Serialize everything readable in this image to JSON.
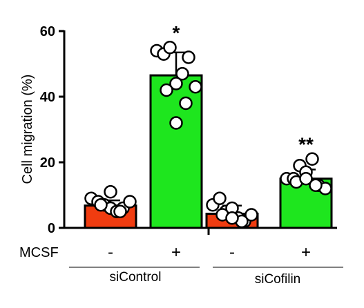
{
  "chart_data": {
    "type": "bar",
    "ylabel": "Cell migration (%)",
    "ylim": [
      0,
      60
    ],
    "yticks": [
      "0",
      "20",
      "40",
      "60"
    ],
    "row_label": "MCSF",
    "categories": [
      "-",
      "+",
      "-",
      "+"
    ],
    "groups": [
      {
        "label": "siControl",
        "bars": [
          0,
          1
        ]
      },
      {
        "label": "siCofilin",
        "bars": [
          2,
          3
        ]
      }
    ],
    "bars": [
      {
        "mcsf": "-",
        "group": "siControl",
        "value": 6.8,
        "error": 1.6,
        "color": "#f03c10",
        "significance": "",
        "points": [
          9,
          8,
          7,
          6,
          5,
          6,
          8,
          7,
          5,
          11
        ]
      },
      {
        "mcsf": "+",
        "group": "siControl",
        "value": 46.5,
        "error": 7.0,
        "color": "#1ee61e",
        "significance": "*",
        "points": [
          54,
          53,
          55,
          44,
          47,
          52,
          43,
          42,
          38,
          32
        ]
      },
      {
        "mcsf": "-",
        "group": "siCofilin",
        "value": 4.3,
        "error": 2.5,
        "color": "#f03c10",
        "significance": "",
        "points": [
          7,
          9,
          5,
          6,
          3,
          2,
          4,
          4,
          2,
          3
        ]
      },
      {
        "mcsf": "+",
        "group": "siCofilin",
        "value": 15.0,
        "error": 2.8,
        "color": "#1ee61e",
        "significance": "**",
        "points": [
          15,
          15,
          19,
          17,
          21,
          13,
          12,
          14,
          13,
          15
        ]
      }
    ]
  }
}
